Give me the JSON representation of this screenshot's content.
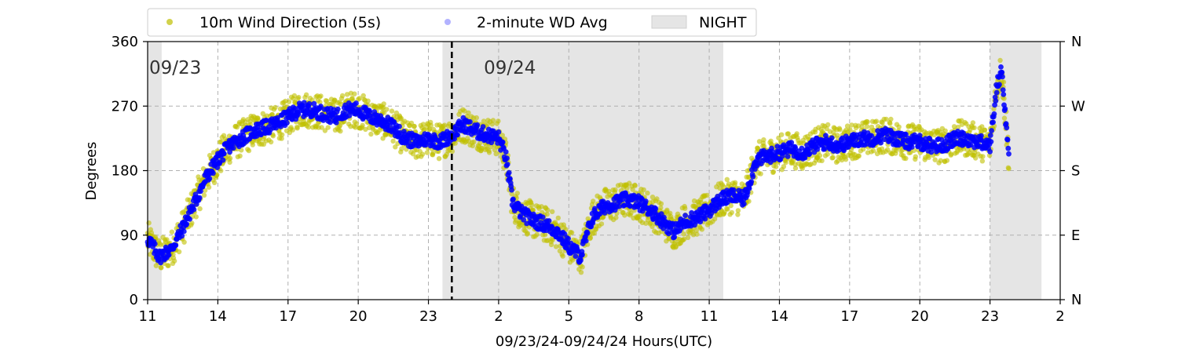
{
  "chart_data": {
    "type": "scatter",
    "xlabel": "09/23/24-09/24/24  Hours(UTC)",
    "ylabel": "Degrees",
    "x_range_hours": [
      11,
      50
    ],
    "ylim": [
      0,
      360
    ],
    "x_ticks": [
      {
        "hour": 11,
        "label": "11"
      },
      {
        "hour": 14,
        "label": "14"
      },
      {
        "hour": 17,
        "label": "17"
      },
      {
        "hour": 20,
        "label": "20"
      },
      {
        "hour": 23,
        "label": "23"
      },
      {
        "hour": 26,
        "label": "2"
      },
      {
        "hour": 29,
        "label": "5"
      },
      {
        "hour": 32,
        "label": "8"
      },
      {
        "hour": 35,
        "label": "11"
      },
      {
        "hour": 38,
        "label": "14"
      },
      {
        "hour": 41,
        "label": "17"
      },
      {
        "hour": 44,
        "label": "20"
      },
      {
        "hour": 47,
        "label": "23"
      },
      {
        "hour": 50,
        "label": "2"
      }
    ],
    "y_ticks_left": [
      "0",
      "90",
      "180",
      "270",
      "360"
    ],
    "y_ticks_right": [
      "N",
      "E",
      "S",
      "W",
      "N"
    ],
    "grid": true,
    "legend_placement": "top",
    "legend": [
      {
        "label": "10m Wind Direction (5s)",
        "color": "#bfbf00",
        "marker": "dot"
      },
      {
        "label": "2-minute WD Avg",
        "color": "#0000ff",
        "marker": "faint-dot"
      },
      {
        "label": "NIGHT",
        "color": "#e5e5e5",
        "marker": "patch"
      }
    ],
    "day_labels": [
      {
        "label": "09/23",
        "hour": 11
      },
      {
        "label": "09/24",
        "hour": 25.3
      }
    ],
    "day_divider_hour": 24.0,
    "night_periods": [
      [
        11.0,
        11.6
      ],
      [
        23.6,
        35.6
      ],
      [
        47.0,
        49.2
      ]
    ],
    "series": [
      {
        "name": "10m Wind Direction (5s)",
        "color": "#bfbf00",
        "spread_deg": 25,
        "points": [
          [
            11.0,
            85
          ],
          [
            11.5,
            60
          ],
          [
            12.0,
            70
          ],
          [
            12.5,
            100
          ],
          [
            13.0,
            135
          ],
          [
            13.5,
            170
          ],
          [
            14.0,
            195
          ],
          [
            14.5,
            215
          ],
          [
            15.0,
            225
          ],
          [
            15.5,
            235
          ],
          [
            16.0,
            240
          ],
          [
            16.5,
            245
          ],
          [
            17.0,
            255
          ],
          [
            17.5,
            265
          ],
          [
            18.0,
            265
          ],
          [
            18.5,
            260
          ],
          [
            19.0,
            255
          ],
          [
            19.5,
            265
          ],
          [
            20.0,
            265
          ],
          [
            20.5,
            255
          ],
          [
            21.0,
            250
          ],
          [
            21.5,
            240
          ],
          [
            22.0,
            225
          ],
          [
            22.5,
            220
          ],
          [
            23.0,
            225
          ],
          [
            23.5,
            220
          ],
          [
            24.0,
            230
          ],
          [
            24.5,
            245
          ],
          [
            25.0,
            235
          ],
          [
            25.5,
            230
          ],
          [
            26.0,
            225
          ],
          [
            26.3,
            200
          ],
          [
            26.6,
            135
          ],
          [
            27.0,
            120
          ],
          [
            27.5,
            110
          ],
          [
            28.0,
            105
          ],
          [
            28.5,
            95
          ],
          [
            29.0,
            75
          ],
          [
            29.5,
            60
          ],
          [
            30.0,
            115
          ],
          [
            30.5,
            130
          ],
          [
            31.0,
            135
          ],
          [
            31.5,
            140
          ],
          [
            32.0,
            135
          ],
          [
            32.5,
            125
          ],
          [
            33.0,
            110
          ],
          [
            33.5,
            95
          ],
          [
            34.0,
            110
          ],
          [
            34.5,
            115
          ],
          [
            35.0,
            125
          ],
          [
            35.5,
            140
          ],
          [
            36.0,
            145
          ],
          [
            36.5,
            140
          ],
          [
            37.0,
            195
          ],
          [
            37.5,
            200
          ],
          [
            38.0,
            205
          ],
          [
            38.5,
            210
          ],
          [
            39.0,
            205
          ],
          [
            39.5,
            215
          ],
          [
            40.0,
            220
          ],
          [
            40.5,
            215
          ],
          [
            41.0,
            220
          ],
          [
            41.5,
            225
          ],
          [
            42.0,
            225
          ],
          [
            42.5,
            230
          ],
          [
            43.0,
            225
          ],
          [
            43.5,
            220
          ],
          [
            44.0,
            220
          ],
          [
            44.5,
            215
          ],
          [
            45.0,
            215
          ],
          [
            45.5,
            225
          ],
          [
            46.0,
            225
          ],
          [
            46.5,
            220
          ],
          [
            47.0,
            215
          ],
          [
            47.3,
            300
          ],
          [
            47.5,
            320
          ],
          [
            47.8,
            200
          ]
        ]
      },
      {
        "name": "2-minute WD Avg",
        "color": "#0000ff",
        "spread_deg": 10,
        "points": [
          [
            11.0,
            85
          ],
          [
            11.5,
            60
          ],
          [
            12.0,
            70
          ],
          [
            12.5,
            100
          ],
          [
            13.0,
            135
          ],
          [
            13.5,
            170
          ],
          [
            14.0,
            195
          ],
          [
            14.5,
            215
          ],
          [
            15.0,
            225
          ],
          [
            15.5,
            235
          ],
          [
            16.0,
            240
          ],
          [
            16.5,
            245
          ],
          [
            17.0,
            255
          ],
          [
            17.5,
            265
          ],
          [
            18.0,
            265
          ],
          [
            18.5,
            260
          ],
          [
            19.0,
            255
          ],
          [
            19.5,
            265
          ],
          [
            20.0,
            265
          ],
          [
            20.5,
            255
          ],
          [
            21.0,
            250
          ],
          [
            21.5,
            240
          ],
          [
            22.0,
            225
          ],
          [
            22.5,
            220
          ],
          [
            23.0,
            225
          ],
          [
            23.5,
            220
          ],
          [
            24.0,
            230
          ],
          [
            24.5,
            245
          ],
          [
            25.0,
            235
          ],
          [
            25.5,
            230
          ],
          [
            26.0,
            225
          ],
          [
            26.3,
            200
          ],
          [
            26.6,
            135
          ],
          [
            27.0,
            120
          ],
          [
            27.5,
            110
          ],
          [
            28.0,
            105
          ],
          [
            28.5,
            95
          ],
          [
            29.0,
            75
          ],
          [
            29.5,
            60
          ],
          [
            30.0,
            115
          ],
          [
            30.5,
            130
          ],
          [
            31.0,
            135
          ],
          [
            31.5,
            140
          ],
          [
            32.0,
            135
          ],
          [
            32.5,
            125
          ],
          [
            33.0,
            110
          ],
          [
            33.5,
            95
          ],
          [
            34.0,
            110
          ],
          [
            34.5,
            115
          ],
          [
            35.0,
            125
          ],
          [
            35.5,
            140
          ],
          [
            36.0,
            145
          ],
          [
            36.5,
            140
          ],
          [
            37.0,
            195
          ],
          [
            37.5,
            200
          ],
          [
            38.0,
            205
          ],
          [
            38.5,
            210
          ],
          [
            39.0,
            205
          ],
          [
            39.5,
            215
          ],
          [
            40.0,
            220
          ],
          [
            40.5,
            215
          ],
          [
            41.0,
            220
          ],
          [
            41.5,
            225
          ],
          [
            42.0,
            225
          ],
          [
            42.5,
            230
          ],
          [
            43.0,
            225
          ],
          [
            43.5,
            220
          ],
          [
            44.0,
            220
          ],
          [
            44.5,
            215
          ],
          [
            45.0,
            215
          ],
          [
            45.5,
            225
          ],
          [
            46.0,
            225
          ],
          [
            46.5,
            220
          ],
          [
            47.0,
            215
          ],
          [
            47.3,
            300
          ],
          [
            47.5,
            320
          ],
          [
            47.8,
            200
          ]
        ]
      }
    ]
  }
}
